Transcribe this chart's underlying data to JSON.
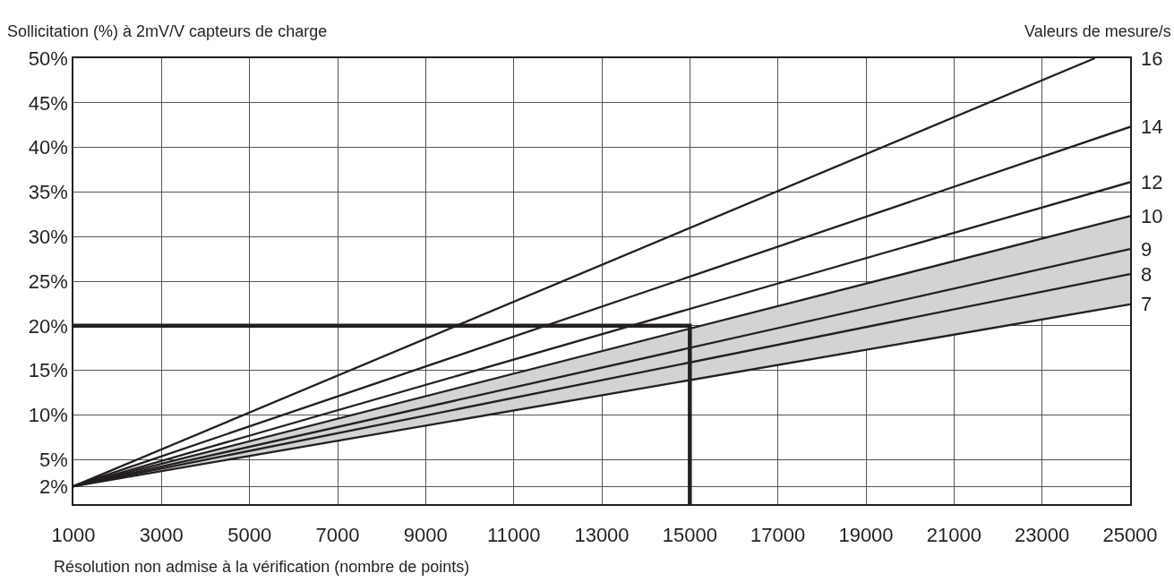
{
  "chart_data": {
    "type": "line",
    "ylabel": "Sollicitation (%) à 2mV/V capteurs de charge",
    "xlabel": "Résolution non admise à la vérification (nombre de points)",
    "legend_title": "Valeurs de mesure/s",
    "xlim": [
      1000,
      25000
    ],
    "xticks": [
      1000,
      3000,
      5000,
      7000,
      9000,
      11000,
      13000,
      15000,
      17000,
      19000,
      21000,
      23000,
      25000
    ],
    "ylim": [
      0,
      50
    ],
    "yticks": [
      {
        "value": 2,
        "label": "2%"
      },
      {
        "value": 5,
        "label": "5%"
      },
      {
        "value": 10,
        "label": "10%"
      },
      {
        "value": 15,
        "label": "15%"
      },
      {
        "value": 20,
        "label": "20%"
      },
      {
        "value": 25,
        "label": "25%"
      },
      {
        "value": 30,
        "label": "30%"
      },
      {
        "value": 35,
        "label": "35%"
      },
      {
        "value": 40,
        "label": "40%"
      },
      {
        "value": 45,
        "label": "45%"
      },
      {
        "value": 50,
        "label": "50%"
      }
    ],
    "grid": true,
    "legend": false,
    "marker": "none",
    "line_style": "solid",
    "series": [
      {
        "name": "16",
        "color": "#231f20",
        "x": [
          1000,
          24200
        ],
        "values": [
          2,
          50
        ]
      },
      {
        "name": "14",
        "color": "#231f20",
        "x": [
          1000,
          25000
        ],
        "values": [
          2,
          42.3
        ]
      },
      {
        "name": "12",
        "color": "#231f20",
        "x": [
          1000,
          25000
        ],
        "values": [
          2,
          36.1
        ]
      },
      {
        "name": "10",
        "color": "#231f20",
        "x": [
          1000,
          25000
        ],
        "values": [
          2,
          32.3
        ]
      },
      {
        "name": "9",
        "color": "#231f20",
        "x": [
          1000,
          25000
        ],
        "values": [
          2,
          28.6
        ],
        "lower": [
          2,
          22.4
        ],
        "upper": [
          2,
          32.3
        ]
      },
      {
        "name": "8",
        "color": "#231f20",
        "x": [
          1000,
          25000
        ],
        "values": [
          2,
          25.8
        ]
      },
      {
        "name": "7",
        "color": "#231f20",
        "x": [
          1000,
          25000
        ],
        "values": [
          2,
          22.4
        ]
      },
      {
        "color": "#231f20",
        "x": [
          1000,
          15000,
          15000
        ],
        "values": [
          20,
          20,
          0
        ]
      }
    ]
  }
}
